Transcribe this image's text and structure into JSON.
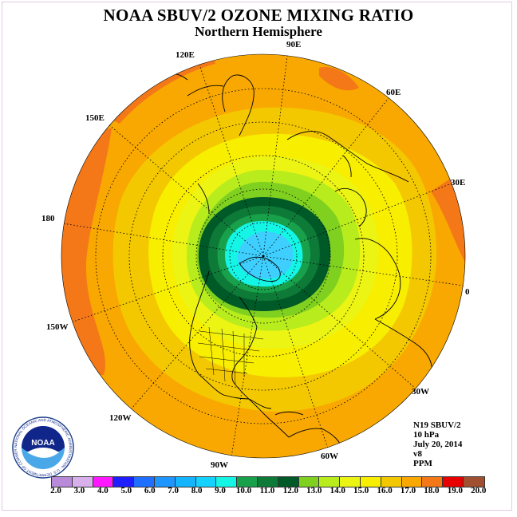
{
  "title": "NOAA SBUV/2 OZONE MIXING RATIO",
  "subtitle": "Northern Hemisphere",
  "longitude_labels": [
    "90E",
    "60E",
    "30E",
    "0",
    "30W",
    "60W",
    "90W",
    "120W",
    "150W",
    "180",
    "150E",
    "120E"
  ],
  "info": {
    "satellite": "N19 SBUV/2",
    "pressure": "10 hPa",
    "date": "July 20, 2014",
    "version": "v8",
    "units": "PPM"
  },
  "logo": {
    "text": "NOAA",
    "ring_text": "NATIONAL OCEANIC AND ATMOSPHERIC ADMINISTRATION · U.S. DEPARTMENT OF COMMERCE"
  },
  "colorbar": {
    "ticks": [
      "2.0",
      "3.0",
      "4.0",
      "5.0",
      "6.0",
      "7.0",
      "8.0",
      "9.0",
      "10.0",
      "11.0",
      "12.0",
      "13.0",
      "14.0",
      "15.0",
      "16.0",
      "17.0",
      "18.0",
      "19.0",
      "20.0"
    ],
    "colors": [
      "#b98ad9",
      "#d8b0ec",
      "#ff18ff",
      "#1e1eff",
      "#1e6eff",
      "#1e96ff",
      "#14b4ff",
      "#14d2ff",
      "#14f5e6",
      "#18a04a",
      "#0e7a38",
      "#005a28",
      "#80d020",
      "#b8ec1c",
      "#ecf414",
      "#f8ee00",
      "#f4c800",
      "#f8a800",
      "#f47818",
      "#e80000",
      "#a05030"
    ]
  },
  "map": {
    "contour_levels_ppm": [
      9.0,
      10.0,
      11.0,
      12.0,
      13.0,
      14.0,
      15.0,
      16.0,
      17.0
    ],
    "level_colors": [
      "#3ecfff",
      "#14f5e6",
      "#18a04a",
      "#005a28",
      "#80d020",
      "#b8ec1c",
      "#ecf414",
      "#f8ee00",
      "#f4c800",
      "#f8a800",
      "#f47818"
    ]
  }
}
